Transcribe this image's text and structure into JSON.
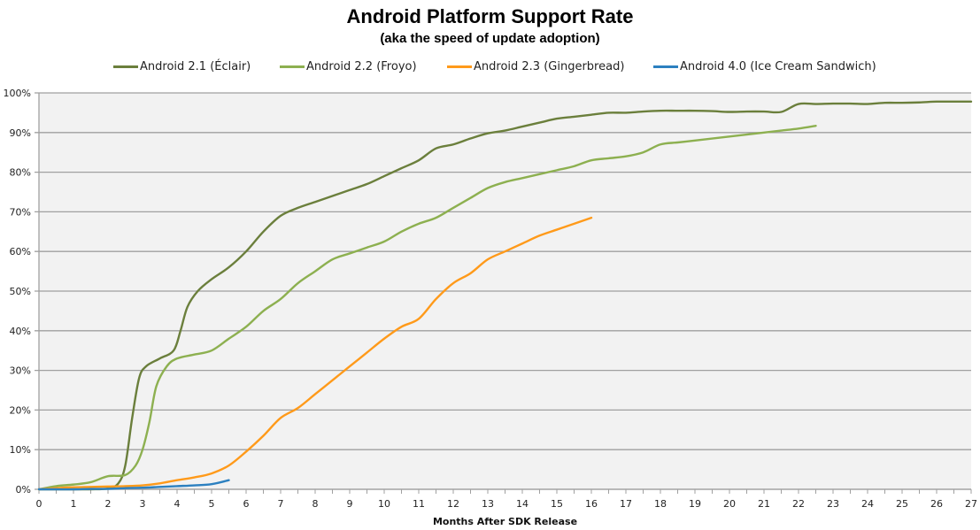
{
  "header": {
    "title": "Android Platform  Support Rate",
    "subtitle": "(aka the speed of update adoption)"
  },
  "legend": [
    {
      "label": "Android 2.1 (Éclair)",
      "color": "#6b7f3c"
    },
    {
      "label": "Android 2.2 (Froyo)",
      "color": "#8db050"
    },
    {
      "label": "Android 2.3 (Gingerbread)",
      "color": "#ff9a1a"
    },
    {
      "label": "Android 4.0 (Ice Cream Sandwich)",
      "color": "#2c80c0"
    }
  ],
  "chart_data": {
    "type": "line",
    "title": "Android Platform  Support Rate",
    "subtitle": "(aka the speed of update adoption)",
    "xlabel": "Months After SDK Release",
    "ylabel": "",
    "xlim": [
      0,
      27
    ],
    "ylim": [
      0,
      100
    ],
    "x_ticks": [
      0,
      1,
      2,
      3,
      4,
      5,
      6,
      7,
      8,
      9,
      10,
      11,
      12,
      13,
      14,
      15,
      16,
      17,
      18,
      19,
      20,
      21,
      22,
      23,
      24,
      25,
      26,
      27
    ],
    "y_ticks": [
      "0%",
      "10%",
      "20%",
      "30%",
      "40%",
      "50%",
      "60%",
      "70%",
      "80%",
      "90%",
      "100%"
    ],
    "grid": true,
    "legend_position": "top",
    "series": [
      {
        "name": "Android 2.1 (Éclair)",
        "color": "#6b7f3c",
        "x": [
          0,
          0.5,
          1,
          1.5,
          2,
          2.3,
          2.5,
          2.7,
          2.9,
          3.1,
          3.5,
          3.9,
          4.1,
          4.3,
          4.6,
          5,
          5.5,
          6,
          6.5,
          7,
          7.5,
          8,
          8.5,
          9,
          9.5,
          10,
          10.5,
          11,
          11.5,
          12,
          12.5,
          13,
          13.5,
          14,
          14.5,
          15,
          15.5,
          16,
          16.5,
          17,
          17.5,
          18,
          18.5,
          19,
          19.5,
          20,
          20.5,
          21,
          21.5,
          22,
          22.5,
          23,
          23.5,
          24,
          24.5,
          25,
          25.5,
          26,
          26.5,
          27
        ],
        "y": [
          0,
          0,
          0,
          0,
          0.2,
          1.5,
          6,
          18,
          28,
          31,
          33,
          35,
          40,
          46,
          50,
          53,
          56,
          60,
          65,
          69,
          71,
          72.5,
          74,
          75.5,
          77,
          79,
          81,
          83,
          86,
          87,
          88.5,
          89.8,
          90.5,
          91.5,
          92.5,
          93.5,
          94,
          94.5,
          95,
          95,
          95.3,
          95.5,
          95.5,
          95.5,
          95.4,
          95.2,
          95.3,
          95.3,
          95.2,
          97.2,
          97.2,
          97.3,
          97.3,
          97.2,
          97.5,
          97.5,
          97.6,
          97.8,
          97.8,
          97.8
        ]
      },
      {
        "name": "Android 2.2 (Froyo)",
        "color": "#8db050",
        "x": [
          0,
          0.5,
          1,
          1.5,
          2,
          2.5,
          2.8,
          3,
          3.2,
          3.4,
          3.7,
          4,
          4.5,
          5,
          5.5,
          6,
          6.5,
          7,
          7.5,
          8,
          8.5,
          9,
          9.5,
          10,
          10.5,
          11,
          11.5,
          12,
          12.5,
          13,
          13.5,
          14,
          14.5,
          15,
          15.5,
          16,
          16.5,
          17,
          17.5,
          18,
          18.5,
          19,
          19.5,
          20,
          20.5,
          21,
          21.5,
          22,
          22.5
        ],
        "y": [
          0,
          0.8,
          1.2,
          1.8,
          3.3,
          3.6,
          6,
          10,
          17,
          26,
          31,
          33,
          34,
          35,
          38,
          41,
          45,
          48,
          52,
          55,
          58,
          59.5,
          61,
          62.5,
          65,
          67,
          68.5,
          71,
          73.5,
          76,
          77.5,
          78.5,
          79.5,
          80.5,
          81.5,
          83,
          83.5,
          84,
          85,
          87,
          87.5,
          88,
          88.5,
          89,
          89.5,
          90,
          90.5,
          91,
          91.7
        ]
      },
      {
        "name": "Android 2.3 (Gingerbread)",
        "color": "#ff9a1a",
        "x": [
          0,
          0.5,
          1,
          1.5,
          2,
          2.5,
          3,
          3.5,
          4,
          4.5,
          5,
          5.5,
          6,
          6.5,
          7,
          7.5,
          8,
          8.5,
          9,
          9.5,
          10,
          10.5,
          11,
          11.5,
          12,
          12.5,
          13,
          13.5,
          14,
          14.5,
          15,
          15.5,
          16
        ],
        "y": [
          0,
          0.3,
          0.5,
          0.6,
          0.7,
          0.8,
          1,
          1.5,
          2.3,
          3,
          4,
          6,
          9.5,
          13.5,
          18,
          20.5,
          24,
          27.5,
          31,
          34.5,
          38,
          41,
          43,
          48,
          52,
          54.5,
          58,
          60,
          62,
          64,
          65.5,
          67,
          68.5
        ]
      },
      {
        "name": "Android 4.0 (Ice Cream Sandwich)",
        "color": "#2c80c0",
        "x": [
          0,
          0.5,
          1,
          1.5,
          2,
          2.5,
          3,
          3.5,
          4,
          4.5,
          5,
          5.5
        ],
        "y": [
          0,
          0,
          0,
          0.1,
          0.1,
          0.3,
          0.4,
          0.6,
          0.8,
          1,
          1.3,
          2.3
        ]
      }
    ]
  }
}
